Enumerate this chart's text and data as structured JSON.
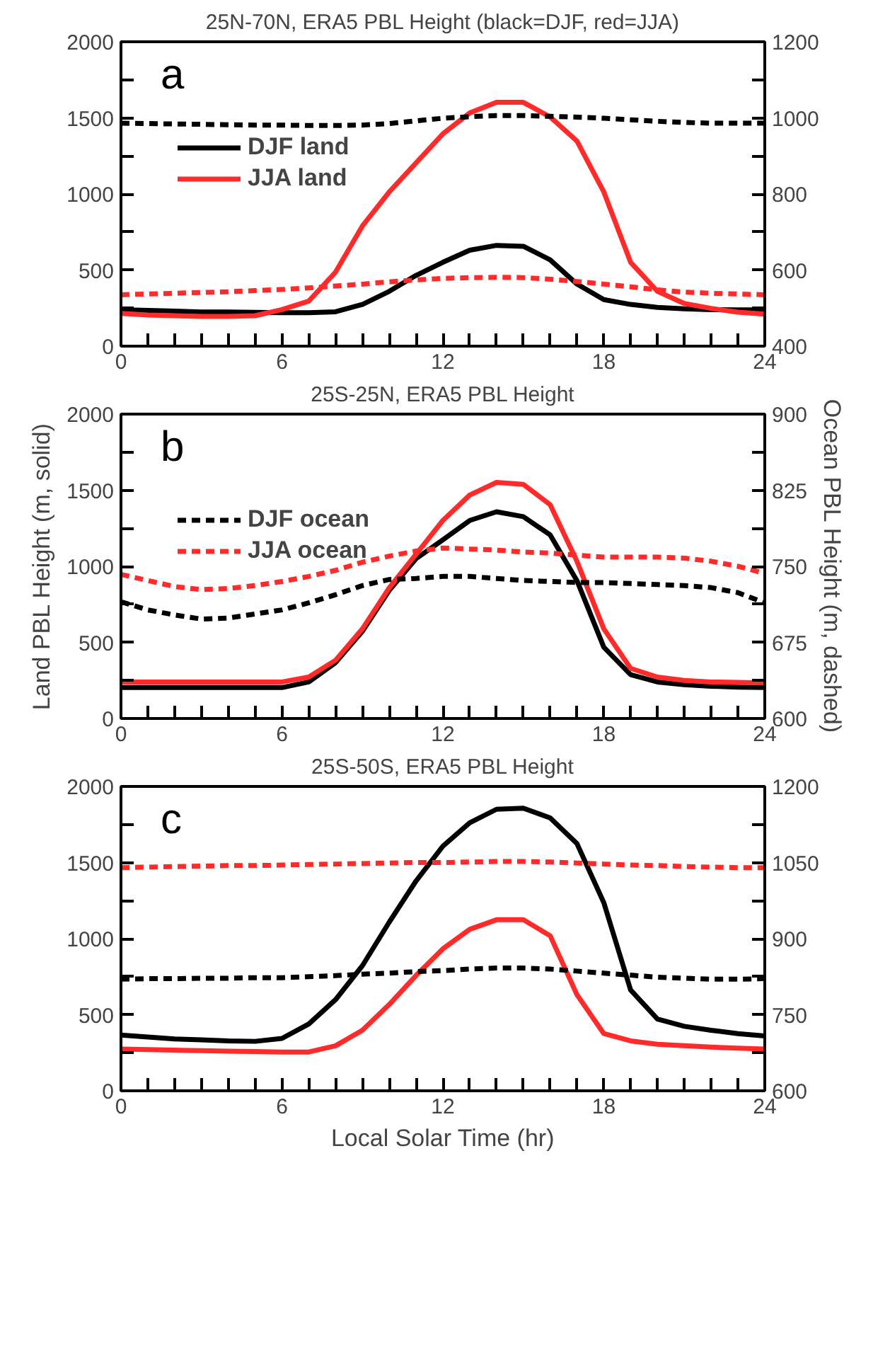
{
  "chart_data": [
    {
      "type": "line",
      "title": "25N-70N, ERA5 PBL Height (black=DJF, red=JJA)",
      "annotations": [
        "a"
      ],
      "legend": "top left",
      "grid": false,
      "x": [
        0,
        1,
        2,
        3,
        4,
        5,
        6,
        7,
        8,
        9,
        10,
        11,
        12,
        13,
        14,
        15,
        16,
        17,
        18,
        19,
        20,
        21,
        22,
        23,
        24
      ],
      "xlim": [
        0,
        24
      ],
      "xticks": [
        0,
        {
          "value": 1,
          "label": null
        },
        {
          "value": 2,
          "label": null
        },
        {
          "value": 3,
          "label": null
        },
        {
          "value": 4,
          "label": null
        },
        {
          "value": 5,
          "label": null
        },
        6,
        {
          "value": 7,
          "label": null
        },
        {
          "value": 8,
          "label": null
        },
        {
          "value": 9,
          "label": null
        },
        {
          "value": 10,
          "label": null
        },
        {
          "value": 11,
          "label": null
        },
        12,
        {
          "value": 13,
          "label": null
        },
        {
          "value": 14,
          "label": null
        },
        {
          "value": 15,
          "label": null
        },
        {
          "value": 16,
          "label": null
        },
        {
          "value": 17,
          "label": null
        },
        18,
        {
          "value": 19,
          "label": null
        },
        {
          "value": 20,
          "label": null
        },
        {
          "value": 21,
          "label": null
        },
        {
          "value": 22,
          "label": null
        },
        {
          "value": 23,
          "label": null
        },
        24
      ],
      "ylim": [
        0,
        2000
      ],
      "yticks": [
        0,
        {
          "value": 250,
          "label": null
        },
        500,
        {
          "value": 750,
          "label": null
        },
        1000,
        {
          "value": 1250,
          "label": null
        },
        1500,
        {
          "value": 1750,
          "label": null
        },
        2000
      ],
      "y2lim": [
        400,
        1200
      ],
      "y2ticks": [
        400,
        {
          "value": 500,
          "label": null
        },
        600,
        {
          "value": 700,
          "label": null
        },
        800,
        {
          "value": 900,
          "label": null
        },
        1000,
        {
          "value": 1100,
          "label": null
        },
        1200
      ],
      "series": [
        {
          "name": "DJF land",
          "color": "#000000",
          "line_style": "solid",
          "values": [
            240,
            235,
            230,
            225,
            225,
            222,
            220,
            220,
            226,
            274,
            360,
            465,
            551,
            630,
            662,
            656,
            567,
            408,
            306,
            274,
            255,
            245,
            240,
            238,
            238
          ]
        },
        {
          "name": "JJA land",
          "color": "#ff2a2a",
          "line_style": "solid",
          "values": [
            215,
            205,
            200,
            195,
            195,
            200,
            240,
            296,
            487,
            790,
            1013,
            1204,
            1395,
            1532,
            1602,
            1602,
            1506,
            1347,
            1013,
            551,
            360,
            280,
            248,
            223,
            210
          ]
        },
        {
          "color": "#000000",
          "line_style": "dashed",
          "axis": "y2",
          "values": [
            986,
            985,
            984,
            983,
            982,
            981,
            981,
            980,
            980,
            981,
            985,
            992,
            999,
            1003,
            1006,
            1006,
            1004,
            1002,
            999,
            995,
            991,
            988,
            986,
            986,
            986
          ]
        },
        {
          "color": "#ff2a2a",
          "line_style": "dashed",
          "axis": "y2",
          "values": [
            535,
            537,
            539,
            541,
            543,
            546,
            549,
            553,
            558,
            563,
            569,
            574,
            578,
            580,
            581,
            580,
            576,
            570,
            563,
            556,
            548,
            542,
            539,
            537,
            535
          ]
        }
      ]
    },
    {
      "type": "line",
      "title": "25S-25N, ERA5 PBL Height",
      "annotations": [
        "b"
      ],
      "legend": "top left",
      "grid": false,
      "ylabel": "Land PBL Height (m, solid)",
      "y2label": "Ocean PBL Height (m, dashed)",
      "x": [
        0,
        1,
        2,
        3,
        4,
        5,
        6,
        7,
        8,
        9,
        10,
        11,
        12,
        13,
        14,
        15,
        16,
        17,
        18,
        19,
        20,
        21,
        22,
        23,
        24
      ],
      "xlim": [
        0,
        24
      ],
      "xticks": [
        0,
        {
          "value": 1,
          "label": null
        },
        {
          "value": 2,
          "label": null
        },
        {
          "value": 3,
          "label": null
        },
        {
          "value": 4,
          "label": null
        },
        {
          "value": 5,
          "label": null
        },
        6,
        {
          "value": 7,
          "label": null
        },
        {
          "value": 8,
          "label": null
        },
        {
          "value": 9,
          "label": null
        },
        {
          "value": 10,
          "label": null
        },
        {
          "value": 11,
          "label": null
        },
        12,
        {
          "value": 13,
          "label": null
        },
        {
          "value": 14,
          "label": null
        },
        {
          "value": 15,
          "label": null
        },
        {
          "value": 16,
          "label": null
        },
        {
          "value": 17,
          "label": null
        },
        18,
        {
          "value": 19,
          "label": null
        },
        {
          "value": 20,
          "label": null
        },
        {
          "value": 21,
          "label": null
        },
        {
          "value": 22,
          "label": null
        },
        {
          "value": 23,
          "label": null
        },
        24
      ],
      "ylim": [
        0,
        2000
      ],
      "yticks": [
        0,
        {
          "value": 250,
          "label": null
        },
        500,
        {
          "value": 750,
          "label": null
        },
        1000,
        {
          "value": 1250,
          "label": null
        },
        1500,
        {
          "value": 1750,
          "label": null
        },
        2000
      ],
      "y2lim": [
        600,
        900
      ],
      "y2ticks": [
        600,
        {
          "value": 637.5,
          "label": null
        },
        675,
        {
          "value": 712.5,
          "label": null
        },
        750,
        {
          "value": 787.5,
          "label": null
        },
        825,
        {
          "value": 862.5,
          "label": null
        },
        900
      ],
      "series": [
        {
          "color": "#000000",
          "line_style": "solid",
          "values": [
            203,
            203,
            203,
            203,
            203,
            203,
            203,
            240,
            367,
            573,
            842,
            1050,
            1174,
            1301,
            1358,
            1326,
            1206,
            905,
            468,
            288,
            240,
            222,
            212,
            206,
            203
          ]
        },
        {
          "color": "#ff2a2a",
          "line_style": "solid",
          "values": [
            240,
            240,
            240,
            240,
            240,
            240,
            240,
            272,
            383,
            589,
            858,
            1079,
            1301,
            1468,
            1551,
            1538,
            1405,
            1032,
            589,
            329,
            272,
            250,
            240,
            237,
            234
          ]
        },
        {
          "name": "DJF ocean",
          "color": "#000000",
          "line_style": "dashed",
          "axis": "y2",
          "values": [
            715,
            707,
            702,
            698,
            699,
            703,
            707,
            714,
            722,
            731,
            737,
            738,
            740,
            740,
            738,
            736,
            735,
            734,
            734,
            733,
            732,
            731,
            729,
            724,
            714
          ]
        },
        {
          "name": "JJA ocean",
          "color": "#ff2a2a",
          "line_style": "dashed",
          "axis": "y2",
          "values": [
            742,
            736,
            730,
            727,
            728,
            731,
            735,
            740,
            746,
            754,
            760,
            765,
            768,
            767,
            766,
            764,
            763,
            761,
            759,
            759,
            759,
            758,
            755,
            750,
            743
          ]
        }
      ]
    },
    {
      "type": "line",
      "title": "25S-50S, ERA5 PBL Height",
      "annotations": [
        "c"
      ],
      "grid": false,
      "xlabel": "Local Solar Time (hr)",
      "x": [
        0,
        1,
        2,
        3,
        4,
        5,
        6,
        7,
        8,
        9,
        10,
        11,
        12,
        13,
        14,
        15,
        16,
        17,
        18,
        19,
        20,
        21,
        22,
        23,
        24
      ],
      "xlim": [
        0,
        24
      ],
      "xticks": [
        0,
        {
          "value": 1,
          "label": null
        },
        {
          "value": 2,
          "label": null
        },
        {
          "value": 3,
          "label": null
        },
        {
          "value": 4,
          "label": null
        },
        {
          "value": 5,
          "label": null
        },
        6,
        {
          "value": 7,
          "label": null
        },
        {
          "value": 8,
          "label": null
        },
        {
          "value": 9,
          "label": null
        },
        {
          "value": 10,
          "label": null
        },
        {
          "value": 11,
          "label": null
        },
        12,
        {
          "value": 13,
          "label": null
        },
        {
          "value": 14,
          "label": null
        },
        {
          "value": 15,
          "label": null
        },
        {
          "value": 16,
          "label": null
        },
        {
          "value": 17,
          "label": null
        },
        18,
        {
          "value": 19,
          "label": null
        },
        {
          "value": 20,
          "label": null
        },
        {
          "value": 21,
          "label": null
        },
        {
          "value": 22,
          "label": null
        },
        {
          "value": 23,
          "label": null
        },
        24
      ],
      "ylim": [
        0,
        2000
      ],
      "yticks": [
        0,
        {
          "value": 250,
          "label": null
        },
        500,
        {
          "value": 750,
          "label": null
        },
        1000,
        {
          "value": 1250,
          "label": null
        },
        1500,
        {
          "value": 1750,
          "label": null
        },
        2000
      ],
      "y2lim": [
        600,
        1200
      ],
      "y2ticks": [
        600,
        {
          "value": 675,
          "label": null
        },
        750,
        {
          "value": 825,
          "label": null
        },
        900,
        {
          "value": 975,
          "label": null
        },
        1050,
        {
          "value": 1125,
          "label": null
        },
        1200
      ],
      "series": [
        {
          "color": "#000000",
          "line_style": "solid",
          "values": [
            366,
            354,
            341,
            335,
            328,
            325,
            344,
            439,
            599,
            822,
            1108,
            1379,
            1608,
            1761,
            1850,
            1857,
            1793,
            1624,
            1236,
            662,
            471,
            424,
            398,
            376,
            360
          ]
        },
        {
          "color": "#ff2a2a",
          "line_style": "solid",
          "values": [
            274,
            271,
            267,
            264,
            261,
            258,
            255,
            255,
            296,
            398,
            567,
            758,
            933,
            1061,
            1124,
            1124,
            1019,
            631,
            376,
            328,
            306,
            296,
            287,
            280,
            274
          ]
        },
        {
          "color": "#000000",
          "line_style": "dashed",
          "axis": "y2",
          "values": [
            820,
            821,
            821,
            822,
            822,
            823,
            823,
            825,
            827,
            830,
            832,
            835,
            837,
            840,
            842,
            842,
            840,
            836,
            832,
            828,
            824,
            822,
            820,
            820,
            821
          ]
        },
        {
          "color": "#ff2a2a",
          "line_style": "dashed",
          "axis": "y2",
          "values": [
            1040,
            1041,
            1042,
            1043,
            1044,
            1044,
            1045,
            1046,
            1047,
            1048,
            1049,
            1050,
            1050,
            1051,
            1052,
            1052,
            1051,
            1049,
            1047,
            1045,
            1044,
            1042,
            1041,
            1040,
            1040
          ]
        }
      ]
    }
  ]
}
